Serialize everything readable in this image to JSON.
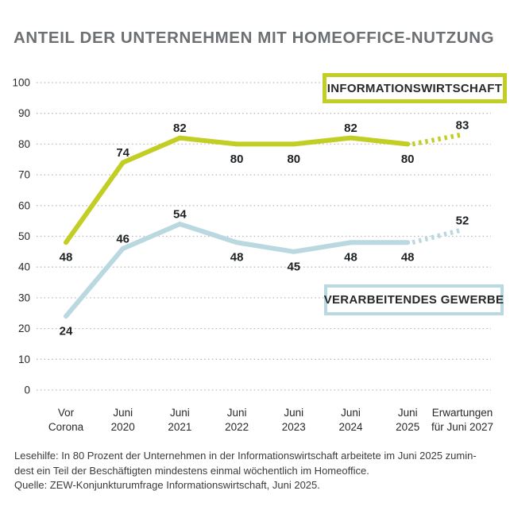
{
  "title": "ANTEIL DER UNTERNEHMEN MIT HOMEOFFICE-NUTZUNG",
  "legend": {
    "info": "INFORMATIONSWIRTSCHAFT",
    "gewerbe": "VERARBEITENDES GEWERBE"
  },
  "colors": {
    "info": "#c2ce24",
    "gewerbe": "#b9d8df",
    "grid": "#b9b9b9",
    "title": "#6c7073",
    "axis_text": "#26282a",
    "data_label": "#1d2123",
    "footer_text": "#3a3b3d",
    "background": "#ffffff"
  },
  "footer": {
    "lines": [
      "Lesehilfe: In 80 Prozent der Unternehmen in der Informationswirtschaft arbeitete im Juni 2025 zumin-",
      "dest ein Teil der Beschäftigten mindestens einmal wöchentlich im Homeoffice.",
      "Quelle: ZEW-Konjunkturumfrage Informationswirtschaft, Juni 2025."
    ]
  },
  "chart_data": {
    "type": "line",
    "title": "ANTEIL DER UNTERNEHMEN MIT HOMEOFFICE-NUTZUNG",
    "ylabel": "",
    "xlabel": "",
    "ylim": [
      0,
      100
    ],
    "ytick_step": 10,
    "grid": "horizontal dotted",
    "legend_position": "boxed labels inside plot, right side",
    "categories": [
      "Vor Corona",
      "Juni 2020",
      "Juni 2021",
      "Juni 2022",
      "Juni 2023",
      "Juni 2024",
      "Juni 2025",
      "Erwartungen für Juni 2027"
    ],
    "category_lines": [
      [
        "Vor",
        "Corona"
      ],
      [
        "Juni",
        "2020"
      ],
      [
        "Juni",
        "2021"
      ],
      [
        "Juni",
        "2022"
      ],
      [
        "Juni",
        "2023"
      ],
      [
        "Juni",
        "2024"
      ],
      [
        "Juni",
        "2025"
      ],
      [
        "Erwartungen",
        "für Juni 2027"
      ]
    ],
    "series": [
      {
        "name": "Informationswirtschaft",
        "color": "#c2ce24",
        "values": [
          48,
          74,
          82,
          80,
          80,
          82,
          80
        ],
        "forecast_value": 83,
        "forecast_style": "dashed",
        "label_sides": [
          "below",
          "above",
          "above",
          "below",
          "below",
          "above",
          "below"
        ],
        "forecast_label_side": "above"
      },
      {
        "name": "Verarbeitendes Gewerbe",
        "color": "#b9d8df",
        "values": [
          24,
          46,
          54,
          48,
          45,
          48,
          48
        ],
        "forecast_value": 52,
        "forecast_style": "dashed",
        "label_sides": [
          "below",
          "above",
          "above",
          "below",
          "below",
          "below",
          "below"
        ],
        "forecast_label_side": "above"
      }
    ]
  }
}
